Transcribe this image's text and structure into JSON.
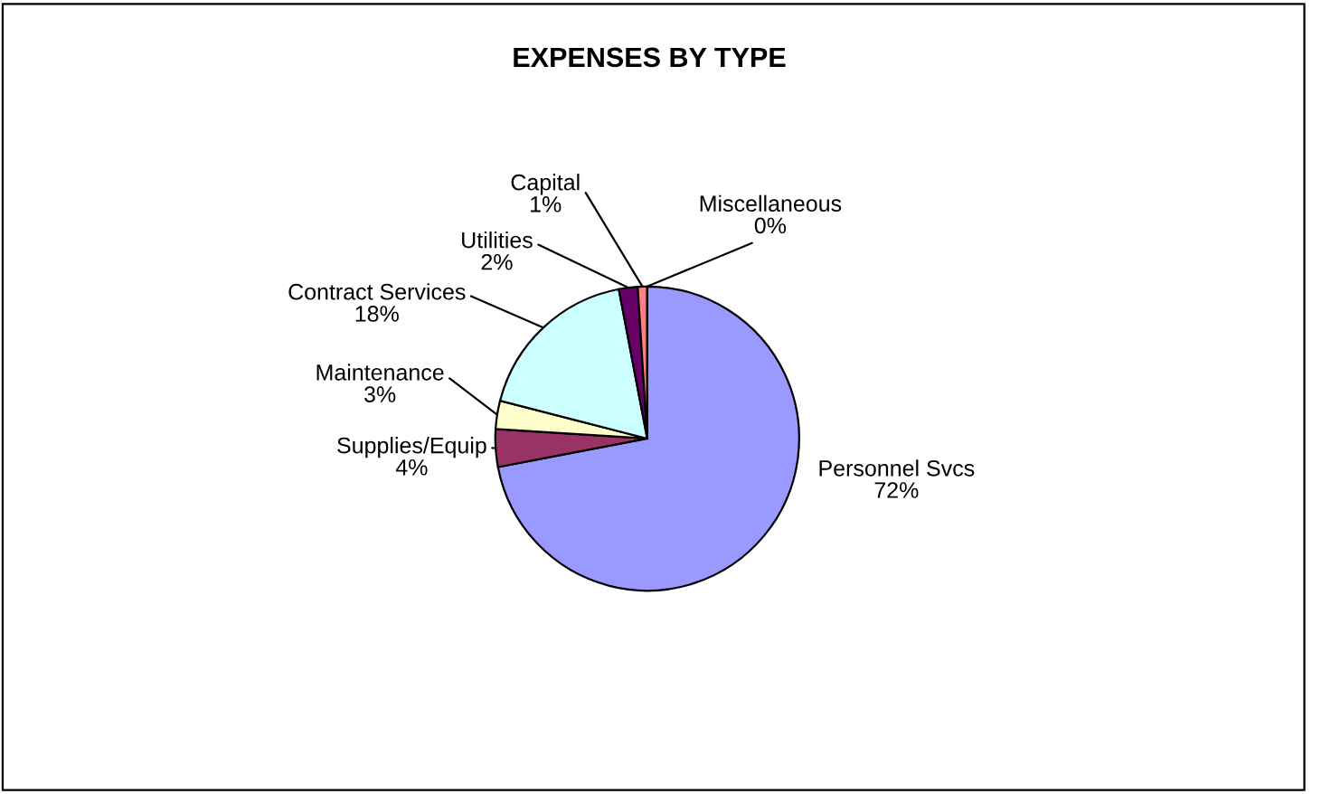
{
  "chart_data": {
    "type": "pie",
    "title": "EXPENSES BY TYPE",
    "categories": [
      "Personnel Svcs",
      "Supplies/Equip",
      "Maintenance",
      "Contract Services",
      "Utilities",
      "Capital",
      "Miscellaneous"
    ],
    "values": [
      72,
      4,
      3,
      18,
      2,
      1,
      0
    ],
    "colors": [
      "#9999ff",
      "#993366",
      "#ffffcc",
      "#ccffff",
      "#660066",
      "#ff8080",
      "#0066cc"
    ],
    "value_labels": [
      "72%",
      "4%",
      "3%",
      "18%",
      "2%",
      "1%",
      "0%"
    ]
  }
}
